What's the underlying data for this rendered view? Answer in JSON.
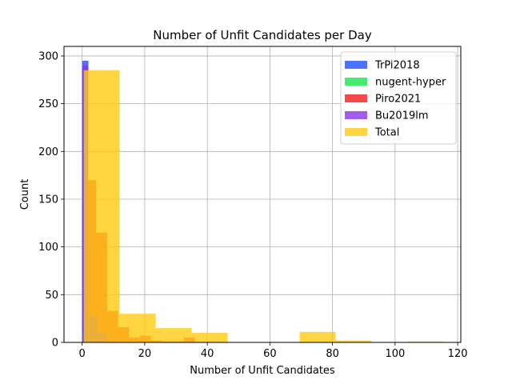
{
  "chart_data": {
    "type": "bar",
    "title": "Number of Unfit Candidates per Day",
    "xlabel": "Number of Unfit Candidates",
    "ylabel": "Count",
    "xlim": [
      -5.8,
      121
    ],
    "ylim": [
      0,
      310
    ],
    "xticks": [
      0,
      20,
      40,
      60,
      80,
      100,
      120
    ],
    "yticks": [
      0,
      50,
      100,
      150,
      200,
      250,
      300
    ],
    "grid": true,
    "legend_position": "top-right",
    "series": [
      {
        "name": "TrPi2018",
        "color": "#1f4fff",
        "opacity": 0.8,
        "bins": [
          {
            "x0": 0.0,
            "x1": 2.0,
            "count": 295
          }
        ]
      },
      {
        "name": "nugent-hyper",
        "color": "#18e64a",
        "opacity": 0.8,
        "bins": [
          {
            "x0": 0.0,
            "x1": 1.0,
            "count": 10
          }
        ]
      },
      {
        "name": "Piro2021",
        "color": "#f01c1c",
        "opacity": 0.8,
        "bins": [
          {
            "x0": 1.0,
            "x1": 4.5,
            "count": 170
          },
          {
            "x0": 4.5,
            "x1": 8.0,
            "count": 115
          },
          {
            "x0": 8.0,
            "x1": 11.5,
            "count": 33
          },
          {
            "x0": 11.5,
            "x1": 15.0,
            "count": 16
          },
          {
            "x0": 15.0,
            "x1": 18.5,
            "count": 5
          },
          {
            "x0": 18.5,
            "x1": 22.0,
            "count": 7
          },
          {
            "x0": 22.0,
            "x1": 25.5,
            "count": 2
          },
          {
            "x0": 25.5,
            "x1": 29.0,
            "count": 1
          },
          {
            "x0": 29.0,
            "x1": 32.5,
            "count": 1
          },
          {
            "x0": 32.5,
            "x1": 36.0,
            "count": 5
          }
        ]
      },
      {
        "name": "Bu2019lm",
        "color": "#8b33e6",
        "opacity": 0.8,
        "bins": [
          {
            "x0": 0.0,
            "x1": 2.0,
            "count": 290
          },
          {
            "x0": 2.0,
            "x1": 5.0,
            "count": 28
          },
          {
            "x0": 5.0,
            "x1": 8.0,
            "count": 10
          }
        ]
      },
      {
        "name": "Total",
        "color": "#ffcc11",
        "opacity": 0.8,
        "bins": [
          {
            "x0": 0.5,
            "x1": 12.0,
            "count": 285
          },
          {
            "x0": 12.0,
            "x1": 23.5,
            "count": 30
          },
          {
            "x0": 23.5,
            "x1": 35.0,
            "count": 15
          },
          {
            "x0": 35.0,
            "x1": 46.5,
            "count": 10
          },
          {
            "x0": 46.5,
            "x1": 58.0,
            "count": 0
          },
          {
            "x0": 58.0,
            "x1": 69.5,
            "count": 0
          },
          {
            "x0": 69.5,
            "x1": 81.0,
            "count": 11
          },
          {
            "x0": 81.0,
            "x1": 92.5,
            "count": 2
          },
          {
            "x0": 92.5,
            "x1": 104.0,
            "count": 0
          },
          {
            "x0": 104.0,
            "x1": 115.5,
            "count": 1
          }
        ]
      }
    ]
  }
}
